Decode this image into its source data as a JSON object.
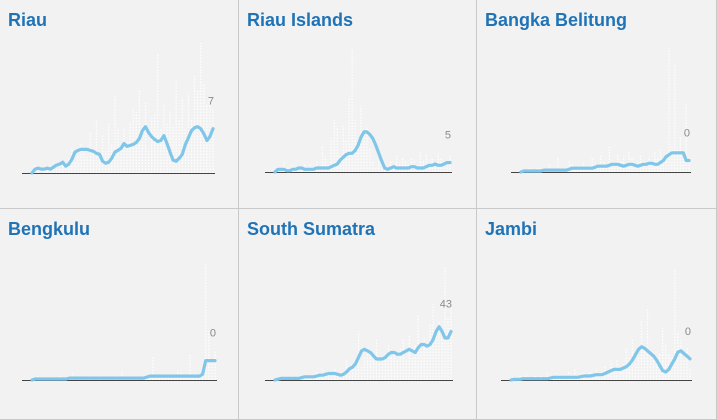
{
  "chart_data": [
    {
      "type": "line",
      "title": "Riau",
      "end_label": "7",
      "colors": {
        "line": "#7fc6ea",
        "bars": "#ffffff",
        "axis": "#444444"
      },
      "ylim": [
        0,
        13
      ],
      "bars": [
        0,
        0.8,
        0.4,
        0,
        0.2,
        0.6,
        0.5,
        0.9,
        0.4,
        0.8,
        1.0,
        0.7,
        1.5,
        2.5,
        1.1,
        1.7,
        3.0,
        2.0,
        1.6,
        4.2,
        2.5,
        5.5,
        2.0,
        3.8,
        2.2,
        5.0,
        3.0,
        8.0,
        4.5,
        2.5,
        4.5,
        3.1,
        5.2,
        6.5,
        6.2,
        8.5,
        3.4,
        7.1,
        2.5,
        5.8,
        6.0,
        12.2,
        4.5,
        7.0,
        5.0,
        6.3,
        4.7,
        9.5,
        5.5,
        7.5,
        4.5,
        8.0,
        5.4,
        10.0,
        8.5,
        13.2,
        9.1,
        7.0,
        7.5,
        6.5
      ],
      "values": [
        0,
        0.4,
        0.5,
        0.4,
        0.4,
        0.5,
        0.4,
        0.6,
        0.8,
        0.9,
        1.1,
        0.7,
        0.9,
        1.4,
        2.1,
        2.3,
        2.4,
        2.4,
        2.4,
        2.3,
        2.2,
        2.0,
        1.9,
        1.2,
        1.0,
        1.1,
        1.5,
        2.1,
        2.3,
        2.5,
        3.0,
        2.7,
        2.8,
        2.9,
        3.1,
        3.5,
        4.3,
        4.7,
        4.1,
        3.7,
        3.4,
        3.2,
        3.3,
        3.8,
        3.0,
        2.1,
        1.3,
        1.2,
        1.5,
        1.9,
        2.9,
        3.6,
        4.3,
        4.6,
        4.7,
        4.5,
        4.0,
        3.3,
        3.7,
        4.5
      ]
    },
    {
      "type": "line",
      "title": "Riau Islands",
      "end_label": "5",
      "colors": {
        "line": "#7fc6ea",
        "bars": "#ffffff",
        "axis": "#444444"
      },
      "ylim": [
        0,
        9.5
      ],
      "bars": [
        0,
        0.4,
        0,
        0.8,
        0.3,
        0,
        0.5,
        0.2,
        0,
        0.4,
        0.7,
        0.2,
        0.6,
        0.3,
        0.9,
        0.4,
        2.0,
        1.0,
        0.5,
        2.5,
        4.0,
        3.4,
        1.2,
        3.6,
        2.4,
        5.6,
        9.2,
        4.0,
        2.5,
        5.0,
        2.8,
        3.4,
        1.8,
        0.9,
        0.4,
        0.8,
        0.6,
        0.4,
        0.3,
        0.9,
        0.5,
        1.2,
        0.7,
        1.0,
        0.8,
        0.6,
        1.0,
        0.9,
        0.5,
        1.6,
        0.8,
        1.3,
        0.7,
        1.0,
        0.6,
        1.4,
        1.1,
        0.9,
        0.8,
        1.2
      ],
      "values": [
        0,
        0.2,
        0.2,
        0.2,
        0.1,
        0.1,
        0.2,
        0.2,
        0.3,
        0.3,
        0.2,
        0.2,
        0.2,
        0.2,
        0.3,
        0.3,
        0.3,
        0.3,
        0.3,
        0.4,
        0.5,
        0.6,
        0.9,
        1.1,
        1.3,
        1.4,
        1.4,
        1.6,
        2.0,
        2.6,
        3.0,
        3.0,
        2.8,
        2.5,
        2.0,
        1.4,
        0.8,
        0.3,
        0.2,
        0.3,
        0.4,
        0.3,
        0.3,
        0.3,
        0.3,
        0.3,
        0.4,
        0.4,
        0.3,
        0.3,
        0.3,
        0.4,
        0.5,
        0.5,
        0.6,
        0.5,
        0.5,
        0.6,
        0.7,
        0.7
      ]
    },
    {
      "type": "line",
      "title": "Bangka Belitung",
      "end_label": "0",
      "colors": {
        "line": "#7fc6ea",
        "bars": "#ffffff",
        "axis": "#444444"
      },
      "ylim": [
        0,
        6.6
      ],
      "bars": [
        0,
        0.1,
        0,
        0.2,
        0,
        0.1,
        0.3,
        0,
        0.2,
        0.1,
        0.4,
        0.2,
        0.1,
        0.8,
        0.2,
        0.3,
        0.1,
        0.6,
        0.4,
        0.2,
        0.3,
        0.1,
        0.5,
        0.2,
        0.3,
        0.7,
        0.4,
        0.3,
        0.9,
        0.6,
        0.2,
        1.4,
        0.5,
        0.3,
        0.9,
        0.6,
        0.8,
        0.4,
        1.1,
        0.7,
        0.3,
        0.5,
        0.9,
        0.6,
        0.4,
        0.8,
        0.5,
        1.0,
        0.7,
        1.2,
        0.6,
        0.9,
        6.5,
        1.4,
        5.6,
        1.2,
        1.8,
        0.8,
        3.6,
        0.5
      ],
      "values": [
        0,
        0.05,
        0.05,
        0.05,
        0.05,
        0.05,
        0.05,
        0.05,
        0.1,
        0.1,
        0.1,
        0.1,
        0.1,
        0.1,
        0.1,
        0.1,
        0.1,
        0.15,
        0.2,
        0.2,
        0.2,
        0.2,
        0.2,
        0.2,
        0.2,
        0.2,
        0.25,
        0.3,
        0.3,
        0.3,
        0.3,
        0.35,
        0.4,
        0.4,
        0.4,
        0.35,
        0.3,
        0.35,
        0.4,
        0.4,
        0.35,
        0.3,
        0.35,
        0.4,
        0.4,
        0.45,
        0.45,
        0.4,
        0.4,
        0.5,
        0.6,
        0.8,
        0.9,
        1.0,
        1.0,
        1.0,
        1.0,
        1.0,
        0.6,
        0.6
      ]
    },
    {
      "type": "line",
      "title": "Bengkulu",
      "end_label": "0",
      "colors": {
        "line": "#7fc6ea",
        "bars": "#ffffff",
        "axis": "#444444"
      },
      "ylim": [
        0,
        6.5
      ],
      "bars": [
        0,
        0,
        0.2,
        0,
        0.1,
        0,
        0.1,
        0,
        0,
        0.2,
        0,
        0.1,
        0,
        0.4,
        0,
        0.1,
        0.1,
        0,
        0.2,
        0.3,
        0,
        0.1,
        0.2,
        0,
        0.3,
        0.1,
        0,
        0.2,
        0.1,
        0.5,
        0,
        0.1,
        0.2,
        0.3,
        0.1,
        0,
        0.2,
        0.1,
        0.3,
        1.2,
        0.2,
        0.1,
        0.3,
        0.2,
        0.1,
        0.3,
        0.2,
        0.5,
        0.4,
        0.2,
        0.3,
        1.3,
        0.2,
        0.1,
        0.3,
        0.2,
        6.0,
        2.5,
        1.0,
        1.5
      ],
      "values": [
        0,
        0.05,
        0.05,
        0.05,
        0.05,
        0.05,
        0.05,
        0.05,
        0.05,
        0.05,
        0.05,
        0.05,
        0.1,
        0.1,
        0.1,
        0.1,
        0.1,
        0.1,
        0.1,
        0.1,
        0.1,
        0.1,
        0.1,
        0.1,
        0.1,
        0.1,
        0.1,
        0.1,
        0.1,
        0.1,
        0.1,
        0.1,
        0.1,
        0.1,
        0.1,
        0.1,
        0.1,
        0.15,
        0.2,
        0.2,
        0.2,
        0.2,
        0.2,
        0.2,
        0.2,
        0.2,
        0.2,
        0.2,
        0.2,
        0.2,
        0.2,
        0.2,
        0.2,
        0.2,
        0.2,
        0.3,
        1.0,
        1.0,
        1.0,
        1.0
      ]
    },
    {
      "type": "line",
      "title": "South Sumatra",
      "end_label": "43",
      "colors": {
        "line": "#7fc6ea",
        "bars": "#ffffff",
        "axis": "#444444"
      },
      "ylim": [
        0,
        78
      ],
      "bars": [
        0,
        0,
        2,
        0,
        1,
        0,
        3,
        0,
        2,
        1,
        4,
        2,
        1,
        3,
        5,
        2,
        6,
        3,
        4,
        2,
        7,
        3,
        5,
        4,
        12,
        6,
        8,
        9,
        30,
        8,
        15,
        20,
        18,
        12,
        25,
        10,
        12,
        14,
        22,
        15,
        18,
        13,
        20,
        25,
        12,
        28,
        14,
        22,
        40,
        18,
        26,
        22,
        35,
        48,
        30,
        36,
        25,
        70,
        38,
        48
      ],
      "values": [
        0,
        0.5,
        1,
        1,
        1,
        1,
        1,
        1,
        1,
        1.5,
        2,
        2,
        2,
        2,
        2.5,
        3,
        3,
        3.5,
        4,
        4,
        4,
        3.5,
        3,
        3.5,
        5,
        7,
        8,
        10,
        14,
        18,
        19,
        18,
        17,
        15,
        13,
        13,
        13,
        14,
        16,
        17,
        17,
        16,
        16,
        17,
        18,
        19,
        18,
        17,
        20,
        22,
        22,
        21,
        22,
        25,
        30,
        33,
        30,
        26,
        26,
        30
      ]
    },
    {
      "type": "line",
      "title": "Jambi",
      "end_label": "0",
      "colors": {
        "line": "#7fc6ea",
        "bars": "#ffffff",
        "axis": "#444444"
      },
      "ylim": [
        0,
        9.5
      ],
      "bars": [
        0,
        0.2,
        0,
        0.3,
        0.1,
        0.5,
        0.2,
        0,
        0.4,
        0.1,
        0.3,
        0.2,
        0.6,
        0.3,
        0.2,
        0.5,
        0.4,
        0.3,
        0.2,
        0.6,
        0.4,
        0.8,
        0.3,
        0.5,
        0.7,
        0.4,
        0.6,
        0.3,
        0.9,
        0.5,
        0.7,
        1.0,
        0.4,
        1.4,
        0.8,
        1.6,
        0.6,
        1.2,
        2.5,
        1.8,
        3.1,
        1.2,
        1.8,
        4.5,
        2.2,
        5.4,
        2.0,
        1.5,
        1.3,
        2.0,
        4.0,
        2.6,
        2.0,
        1.8,
        8.4,
        3.6,
        3.0,
        1.5,
        2.5,
        0.8
      ],
      "values": [
        0,
        0.05,
        0.05,
        0.05,
        0.1,
        0.1,
        0.1,
        0.1,
        0.1,
        0.1,
        0.1,
        0.1,
        0.1,
        0.15,
        0.2,
        0.2,
        0.2,
        0.2,
        0.2,
        0.2,
        0.2,
        0.2,
        0.2,
        0.25,
        0.3,
        0.3,
        0.3,
        0.35,
        0.4,
        0.4,
        0.4,
        0.5,
        0.6,
        0.7,
        0.8,
        0.8,
        0.8,
        0.9,
        1.0,
        1.2,
        1.5,
        1.9,
        2.3,
        2.5,
        2.4,
        2.2,
        2.0,
        1.8,
        1.5,
        1.1,
        0.7,
        0.6,
        0.8,
        1.2,
        1.6,
        2.1,
        2.2,
        2.0,
        1.8,
        1.6
      ]
    }
  ]
}
